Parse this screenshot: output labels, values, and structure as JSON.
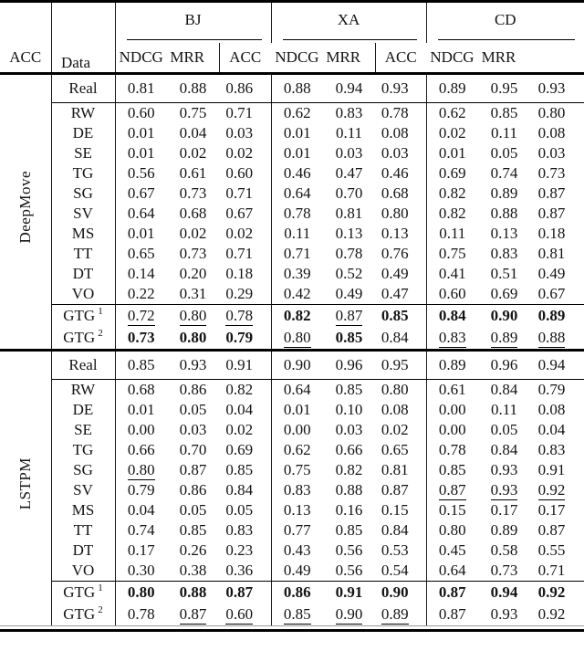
{
  "table": {
    "corner_label": "Data",
    "column_groups": [
      "BJ",
      "XA",
      "CD"
    ],
    "metrics": [
      "ACC",
      "NDCG",
      "MRR"
    ],
    "style_colors": {
      "rule": "#000000",
      "text": "#141414",
      "background": "#ffffff"
    },
    "sections": [
      {
        "model": "DeepMove",
        "rows_real": [
          {
            "label": "Real",
            "values": [
              "0.81",
              "0.88",
              "0.86",
              "0.88",
              "0.94",
              "0.93",
              "0.89",
              "0.95",
              "0.93"
            ]
          }
        ],
        "rows_generators": [
          {
            "label": "RW",
            "values": [
              "0.60",
              "0.75",
              "0.71",
              "0.62",
              "0.83",
              "0.78",
              "0.62",
              "0.85",
              "0.80"
            ]
          },
          {
            "label": "DE",
            "values": [
              "0.01",
              "0.04",
              "0.03",
              "0.01",
              "0.11",
              "0.08",
              "0.02",
              "0.11",
              "0.08"
            ]
          },
          {
            "label": "SE",
            "values": [
              "0.01",
              "0.02",
              "0.02",
              "0.01",
              "0.03",
              "0.03",
              "0.01",
              "0.05",
              "0.03"
            ]
          },
          {
            "label": "TG",
            "values": [
              "0.56",
              "0.61",
              "0.60",
              "0.46",
              "0.47",
              "0.46",
              "0.69",
              "0.74",
              "0.73"
            ]
          },
          {
            "label": "SG",
            "values": [
              "0.67",
              "0.73",
              "0.71",
              "0.64",
              "0.70",
              "0.68",
              "0.82",
              "0.89",
              "0.87"
            ]
          },
          {
            "label": "SV",
            "values": [
              "0.64",
              "0.68",
              "0.67",
              "0.78",
              "0.81",
              "0.80",
              "0.82",
              "0.88",
              "0.87"
            ]
          },
          {
            "label": "MS",
            "values": [
              "0.01",
              "0.02",
              "0.02",
              "0.11",
              "0.13",
              "0.13",
              "0.11",
              "0.13",
              "0.18"
            ]
          },
          {
            "label": "TT",
            "values": [
              "0.65",
              "0.73",
              "0.71",
              "0.71",
              "0.78",
              "0.76",
              "0.75",
              "0.83",
              "0.81"
            ]
          },
          {
            "label": "DT",
            "values": [
              "0.14",
              "0.20",
              "0.18",
              "0.39",
              "0.52",
              "0.49",
              "0.41",
              "0.51",
              "0.49"
            ]
          },
          {
            "label": "VO",
            "values": [
              "0.22",
              "0.31",
              "0.29",
              "0.42",
              "0.49",
              "0.47",
              "0.60",
              "0.69",
              "0.67"
            ]
          }
        ],
        "rows_gtg": [
          {
            "label": "GTG",
            "sup": "1",
            "values": [
              "u:0.72",
              "u:0.80",
              "u:0.78",
              "b:0.82",
              "u:0.87",
              "b:0.85",
              "b:0.84",
              "b:0.90",
              "b:0.89"
            ]
          },
          {
            "label": "GTG",
            "sup": "2",
            "values": [
              "b:0.73",
              "b:0.80",
              "b:0.79",
              "u:0.80",
              "b:0.85",
              "0.84",
              "u:0.83",
              "u:0.89",
              "u:0.88"
            ]
          }
        ]
      },
      {
        "model": "LSTPM",
        "rows_real": [
          {
            "label": "Real",
            "values": [
              "0.85",
              "0.93",
              "0.91",
              "0.90",
              "0.96",
              "0.95",
              "0.89",
              "0.96",
              "0.94"
            ]
          }
        ],
        "rows_generators": [
          {
            "label": "RW",
            "values": [
              "0.68",
              "0.86",
              "0.82",
              "0.64",
              "0.85",
              "0.80",
              "0.61",
              "0.84",
              "0.79"
            ]
          },
          {
            "label": "DE",
            "values": [
              "0.01",
              "0.05",
              "0.04",
              "0.01",
              "0.10",
              "0.08",
              "0.00",
              "0.11",
              "0.08"
            ]
          },
          {
            "label": "SE",
            "values": [
              "0.00",
              "0.03",
              "0.02",
              "0.00",
              "0.03",
              "0.02",
              "0.00",
              "0.05",
              "0.04"
            ]
          },
          {
            "label": "TG",
            "values": [
              "0.66",
              "0.70",
              "0.69",
              "0.62",
              "0.66",
              "0.65",
              "0.78",
              "0.84",
              "0.83"
            ]
          },
          {
            "label": "SG",
            "values": [
              "u:0.80",
              "0.87",
              "0.85",
              "0.75",
              "0.82",
              "0.81",
              "0.85",
              "0.93",
              "0.91"
            ]
          },
          {
            "label": "SV",
            "values": [
              "0.79",
              "0.86",
              "0.84",
              "0.83",
              "0.88",
              "0.87",
              "u:0.87",
              "u:0.93",
              "u:0.92"
            ]
          },
          {
            "label": "MS",
            "values": [
              "0.04",
              "0.05",
              "0.05",
              "0.13",
              "0.16",
              "0.15",
              "0.15",
              "0.17",
              "0.17"
            ]
          },
          {
            "label": "TT",
            "values": [
              "0.74",
              "0.85",
              "0.83",
              "0.77",
              "0.85",
              "0.84",
              "0.80",
              "0.89",
              "0.87"
            ]
          },
          {
            "label": "DT",
            "values": [
              "0.17",
              "0.26",
              "0.23",
              "0.43",
              "0.56",
              "0.53",
              "0.45",
              "0.58",
              "0.55"
            ]
          },
          {
            "label": "VO",
            "values": [
              "0.30",
              "0.38",
              "0.36",
              "0.49",
              "0.56",
              "0.54",
              "0.64",
              "0.73",
              "0.71"
            ]
          }
        ],
        "rows_gtg": [
          {
            "label": "GTG",
            "sup": "1",
            "values": [
              "b:0.80",
              "b:0.88",
              "b:0.87",
              "b:0.86",
              "b:0.91",
              "b:0.90",
              "b:0.87",
              "b:0.94",
              "b:0.92"
            ]
          },
          {
            "label": "GTG",
            "sup": "2",
            "values": [
              "0.78",
              "u:0.87",
              "u:0.60",
              "u:0.85",
              "u:0.90",
              "u:0.89",
              "0.87",
              "0.93",
              "0.92"
            ]
          }
        ]
      }
    ]
  }
}
